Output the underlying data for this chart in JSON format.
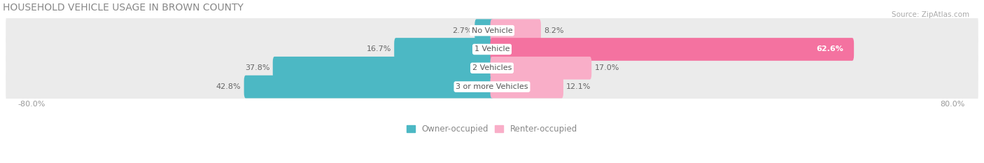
{
  "title": "HOUSEHOLD VEHICLE USAGE IN BROWN COUNTY",
  "source": "Source: ZipAtlas.com",
  "categories": [
    "No Vehicle",
    "1 Vehicle",
    "2 Vehicles",
    "3 or more Vehicles"
  ],
  "owner_values": [
    2.7,
    16.7,
    37.8,
    42.8
  ],
  "renter_values": [
    8.2,
    62.6,
    17.0,
    12.1
  ],
  "owner_color": "#4cb8c4",
  "renter_color": "#f472a0",
  "renter_color_light": "#f9aec8",
  "row_bg_color": "#ebebeb",
  "label_bg_color": "#ffffff",
  "xlim_left": -85,
  "xlim_right": 85,
  "legend_owner": "Owner-occupied",
  "legend_renter": "Renter-occupied",
  "title_fontsize": 10,
  "source_fontsize": 7.5,
  "bar_height": 0.62,
  "figsize": [
    14.06,
    2.33
  ]
}
